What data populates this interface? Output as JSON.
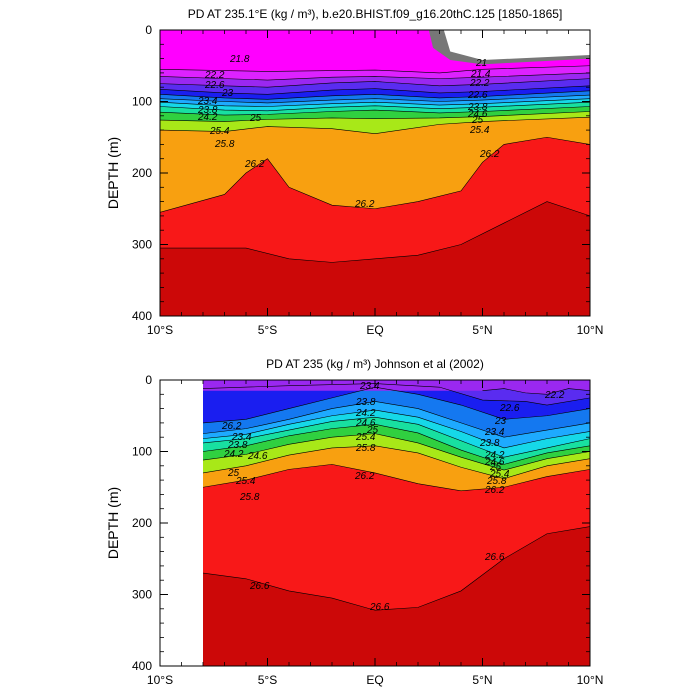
{
  "chart_data": [
    {
      "type": "contour",
      "title": "PD AT 235.1°E (kg / m³), b.e20.BHIST.f09_g16.20thC.125 [1850-1865]",
      "ylabel": "DEPTH (m)",
      "xlabel": "",
      "x_ticks": [
        "10°S",
        "5°S",
        "EQ",
        "5°N",
        "10°N"
      ],
      "y_ticks": [
        "0",
        "100",
        "200",
        "300",
        "400"
      ],
      "xlim": [
        -10,
        10
      ],
      "ylim": [
        0,
        400
      ],
      "x_data_start": -10,
      "contour_labels": [
        "21.8",
        "22.2",
        "22.6",
        "23",
        "23.4",
        "23.8",
        "24.2",
        "24.6",
        "25",
        "25.4",
        "25.8",
        "26.2",
        "26.2",
        "21",
        "21.4",
        "22.2",
        "22.6",
        "23.8",
        "24.6",
        "25",
        "25.4",
        "25.8",
        "26.2"
      ],
      "isopycnals": [
        {
          "level": 21.8,
          "x": [
            -10,
            -5,
            0,
            3,
            5,
            10
          ],
          "y": [
            55,
            58,
            56,
            60,
            55,
            50
          ]
        },
        {
          "level": 22.2,
          "x": [
            -10,
            -7,
            -5,
            -2,
            0,
            3,
            5,
            10
          ],
          "y": [
            65,
            68,
            70,
            66,
            65,
            68,
            66,
            60
          ]
        },
        {
          "level": 22.6,
          "x": [
            -10,
            -7,
            -5,
            -2,
            0,
            3,
            5,
            10
          ],
          "y": [
            75,
            78,
            80,
            74,
            72,
            78,
            76,
            68
          ]
        },
        {
          "level": 23,
          "x": [
            -10,
            -7,
            -5,
            -2,
            0,
            3,
            5,
            10
          ],
          "y": [
            83,
            88,
            90,
            84,
            82,
            88,
            86,
            78
          ]
        },
        {
          "level": 23.4,
          "x": [
            -10,
            -7,
            -5,
            -2,
            0,
            3,
            5,
            10
          ],
          "y": [
            90,
            95,
            97,
            92,
            90,
            95,
            93,
            85
          ]
        },
        {
          "level": 23.8,
          "x": [
            -10,
            -7,
            -5,
            -2,
            0,
            3,
            5,
            10
          ],
          "y": [
            96,
            100,
            102,
            98,
            96,
            100,
            98,
            91
          ]
        },
        {
          "level": 24.2,
          "x": [
            -10,
            -7,
            -5,
            -2,
            0,
            3,
            5,
            10
          ],
          "y": [
            101,
            106,
            107,
            103,
            101,
            105,
            103,
            96
          ]
        },
        {
          "level": 24.6,
          "x": [
            -10,
            -7,
            -5,
            -2,
            0,
            3,
            5,
            10
          ],
          "y": [
            107,
            112,
            113,
            108,
            106,
            110,
            108,
            101
          ]
        },
        {
          "level": 25,
          "x": [
            -10,
            -7,
            -5,
            -2,
            0,
            3,
            5,
            10
          ],
          "y": [
            115,
            119,
            118,
            114,
            112,
            116,
            114,
            107
          ]
        },
        {
          "level": 25.4,
          "x": [
            -10,
            -7,
            -5,
            -2,
            0,
            3,
            5,
            10
          ],
          "y": [
            126,
            128,
            125,
            123,
            124,
            123,
            121,
            114
          ]
        },
        {
          "level": 25.8,
          "x": [
            -10,
            -7,
            -5,
            -2,
            0,
            3,
            5,
            10
          ],
          "y": [
            140,
            142,
            135,
            138,
            145,
            132,
            128,
            122
          ]
        },
        {
          "level": 26.2,
          "x": [
            -10,
            -7,
            -6,
            -5,
            -4,
            -2,
            0,
            2,
            4,
            5,
            6,
            8,
            10
          ],
          "y": [
            255,
            230,
            200,
            180,
            220,
            245,
            250,
            240,
            225,
            185,
            160,
            150,
            160
          ]
        },
        {
          "level": 26.6,
          "x": [
            -10,
            -6,
            -4,
            -2,
            0,
            2,
            4,
            6,
            8,
            10
          ],
          "y": [
            305,
            305,
            320,
            325,
            320,
            315,
            300,
            270,
            240,
            260
          ]
        }
      ]
    },
    {
      "type": "contour",
      "title": "PD AT 235 (kg / m³) Johnson et al (2002)",
      "ylabel": "DEPTH (m)",
      "xlabel": "",
      "x_ticks": [
        "10°S",
        "5°S",
        "EQ",
        "5°N",
        "10°N"
      ],
      "y_ticks": [
        "0",
        "100",
        "200",
        "300",
        "400"
      ],
      "xlim": [
        -10,
        10
      ],
      "ylim": [
        0,
        400
      ],
      "x_data_start": -8,
      "contour_labels": [
        "23.4",
        "23.8",
        "24.2",
        "24.6",
        "25",
        "25.4",
        "25.8",
        "22.2",
        "22.6",
        "23",
        "23.4",
        "23.8",
        "24.2",
        "24.6",
        "25",
        "25.4",
        "25.8",
        "26.2",
        "26.2",
        "23.4",
        "23.8",
        "24.2",
        "24.6",
        "25",
        "25.4",
        "25.8",
        "26.2",
        "26.6",
        "26.6",
        "26.6"
      ],
      "isopycnals": [
        {
          "level": 22.6,
          "x": [
            5,
            6,
            7,
            8,
            9,
            10
          ],
          "y": [
            15,
            12,
            18,
            20,
            12,
            15
          ]
        },
        {
          "level": 23,
          "x": [
            -8,
            -4,
            0,
            3,
            5,
            7,
            8,
            10
          ],
          "y": [
            12,
            8,
            5,
            10,
            28,
            30,
            35,
            25
          ]
        },
        {
          "level": 23.4,
          "x": [
            -8,
            -6,
            -4,
            -2,
            0,
            2,
            4,
            6,
            8,
            10
          ],
          "y": [
            60,
            55,
            40,
            25,
            10,
            20,
            35,
            55,
            50,
            40
          ]
        },
        {
          "level": 23.8,
          "x": [
            -8,
            -6,
            -4,
            -2,
            0,
            2,
            4,
            6,
            8,
            10
          ],
          "y": [
            75,
            68,
            55,
            40,
            30,
            40,
            60,
            80,
            70,
            60
          ]
        },
        {
          "level": 24.2,
          "x": [
            -8,
            -6,
            -4,
            -2,
            0,
            2,
            4,
            6,
            8,
            10
          ],
          "y": [
            82,
            76,
            62,
            50,
            42,
            52,
            72,
            95,
            82,
            72
          ]
        },
        {
          "level": 24.6,
          "x": [
            -8,
            -6,
            -4,
            -2,
            0,
            2,
            4,
            6,
            8,
            10
          ],
          "y": [
            88,
            82,
            70,
            58,
            52,
            62,
            85,
            108,
            95,
            82
          ]
        },
        {
          "level": 25,
          "x": [
            -8,
            -6,
            -4,
            -2,
            0,
            2,
            4,
            6,
            8,
            10
          ],
          "y": [
            100,
            92,
            78,
            68,
            62,
            74,
            98,
            118,
            102,
            92
          ]
        },
        {
          "level": 25.4,
          "x": [
            -8,
            -6,
            -4,
            -2,
            0,
            2,
            4,
            6,
            8,
            10
          ],
          "y": [
            112,
            104,
            90,
            80,
            75,
            88,
            108,
            126,
            110,
            100
          ]
        },
        {
          "level": 25.8,
          "x": [
            -8,
            -6,
            -4,
            -2,
            0,
            2,
            4,
            6,
            8,
            10
          ],
          "y": [
            130,
            120,
            105,
            95,
            92,
            102,
            122,
            138,
            120,
            110
          ]
        },
        {
          "level": 26.2,
          "x": [
            -8,
            -6,
            -4,
            -2,
            0,
            2,
            4,
            6,
            8,
            10
          ],
          "y": [
            150,
            140,
            125,
            118,
            130,
            145,
            155,
            150,
            135,
            125
          ]
        },
        {
          "level": 26.6,
          "x": [
            -8,
            -6,
            -4,
            -2,
            0,
            2,
            4,
            6,
            8,
            10
          ],
          "y": [
            270,
            278,
            295,
            305,
            322,
            318,
            295,
            250,
            215,
            205
          ]
        }
      ]
    }
  ]
}
